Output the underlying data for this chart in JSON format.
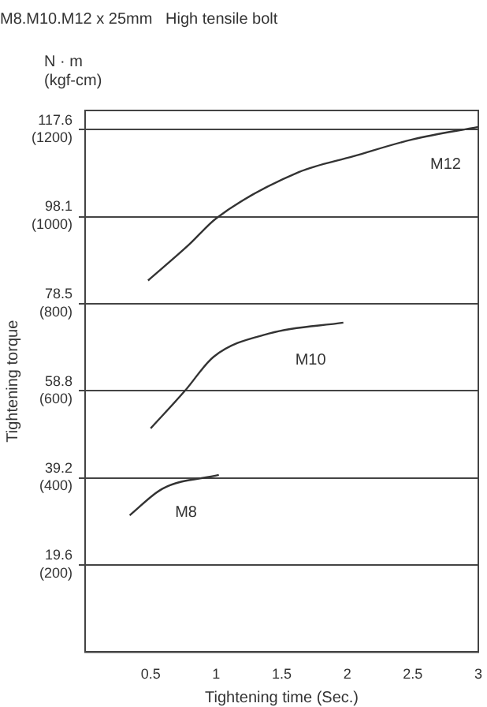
{
  "chart_data": {
    "type": "line",
    "title": "M8.M10.M12 x 25mm   High tensile bolt",
    "xlabel": "Tightening time (Sec.)",
    "ylabel": "Tightening torque",
    "annotations": [
      "N · m\n(kgf-cm)"
    ],
    "series": [
      {
        "name": "M12",
        "axis": "y2",
        "color": "#333333",
        "x": [
          0.48,
          0.79,
          1.0,
          1.63,
          2.05,
          2.5,
          3.0
        ],
        "values": [
          83.7,
          91.7,
          97.7,
          108.1,
          111.7,
          115.5,
          118.3
        ]
      },
      {
        "name": "M10",
        "axis": "y2",
        "color": "#333333",
        "x": [
          0.5,
          0.76,
          0.98,
          1.41,
          1.97
        ],
        "values": [
          50.4,
          58.8,
          66.5,
          71.8,
          74.2
        ]
      },
      {
        "name": "M8",
        "axis": "y2",
        "color": "#333333",
        "x": [
          0.34,
          0.59,
          1.02
        ],
        "values": [
          30.8,
          36.8,
          39.9
        ]
      }
    ],
    "xlim": [
      0,
      3
    ],
    "xticks": [
      0.5,
      1,
      1.5,
      2,
      2.5,
      3
    ],
    "y2lim": [
      0,
      122
    ],
    "y2ticks": [
      19.6,
      39.2,
      58.8,
      78.5,
      98.1,
      117.6
    ],
    "ylim": [
      0,
      1244
    ],
    "yticks": [
      {
        "value": 200,
        "label": "(200)"
      },
      {
        "value": 400,
        "label": "(400)"
      },
      {
        "value": 600,
        "label": "(600)"
      },
      {
        "value": 800,
        "label": "(800)"
      },
      {
        "value": 1000,
        "label": "(1000)"
      },
      {
        "value": 1200,
        "label": "(1200)"
      }
    ],
    "grid": "y",
    "legend": false,
    "marker": "none",
    "line_style": "solid"
  }
}
